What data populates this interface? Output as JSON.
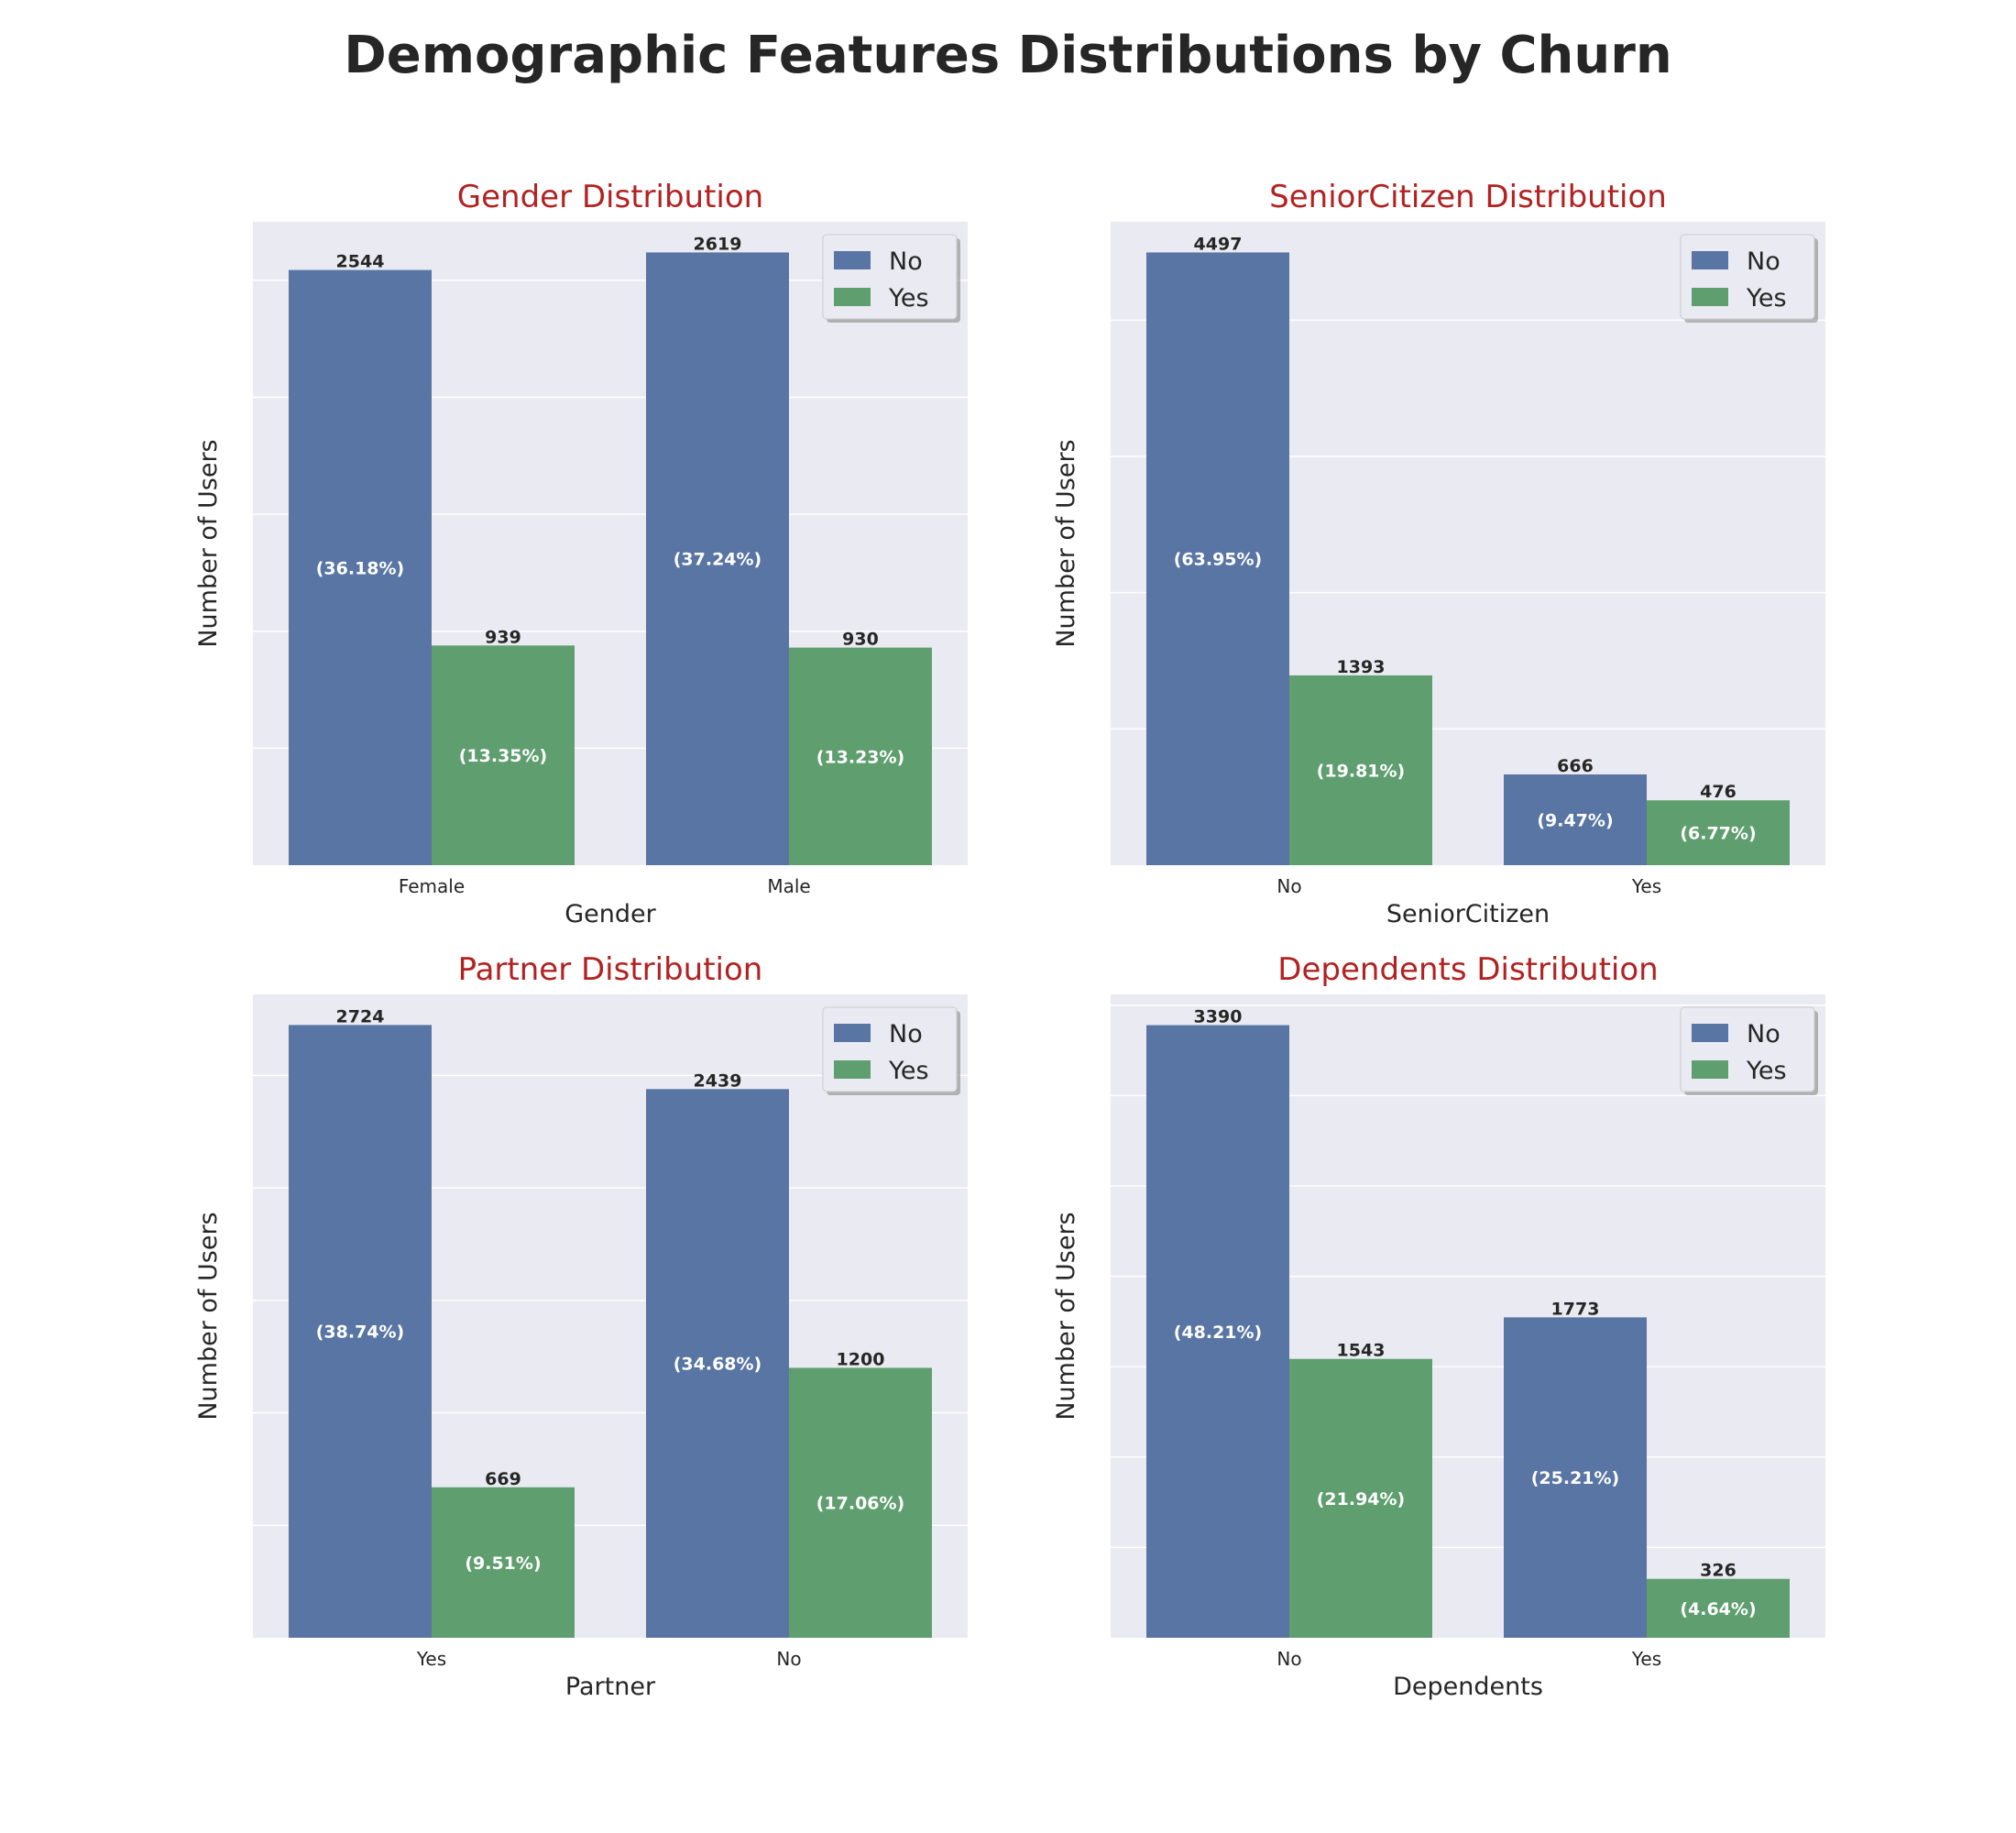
{
  "figure": {
    "title": "Demographic Features Distributions by Churn"
  },
  "legend": {
    "entries": [
      "No",
      "Yes"
    ],
    "placement": "top-right"
  },
  "colors": {
    "No": "#5875a4",
    "Yes": "#5f9e6e",
    "panel_bg": "#eaeaf2",
    "grid": "#ffffff",
    "title": "#b22222"
  },
  "chart_data": [
    {
      "type": "bar",
      "title": "Gender Distribution",
      "xlabel": "Gender",
      "ylabel": "Number of Users",
      "categories": [
        "Female",
        "Male"
      ],
      "series": [
        {
          "name": "No",
          "values": [
            2544,
            2619
          ],
          "labels": [
            "(36.18%)",
            "(37.24%)"
          ]
        },
        {
          "name": "Yes",
          "values": [
            939,
            930
          ],
          "labels": [
            "(13.35%)",
            "(13.23%)"
          ]
        }
      ],
      "ylim": [
        0,
        2750
      ],
      "grid_step": 500,
      "grid": true
    },
    {
      "type": "bar",
      "title": "SeniorCitizen Distribution",
      "xlabel": "SeniorCitizen",
      "ylabel": "Number of Users",
      "categories": [
        "No",
        "Yes"
      ],
      "series": [
        {
          "name": "No",
          "values": [
            4497,
            666
          ],
          "labels": [
            "(63.95%)",
            "(9.47%)"
          ]
        },
        {
          "name": "Yes",
          "values": [
            1393,
            476
          ],
          "labels": [
            "(19.81%)",
            "(6.77%)"
          ]
        }
      ],
      "ylim": [
        0,
        4722
      ],
      "grid_step": 1000,
      "grid": true
    },
    {
      "type": "bar",
      "title": "Partner Distribution",
      "xlabel": "Partner",
      "ylabel": "Number of Users",
      "categories": [
        "Yes",
        "No"
      ],
      "series": [
        {
          "name": "No",
          "values": [
            2724,
            2439
          ],
          "labels": [
            "(38.74%)",
            "(34.68%)"
          ]
        },
        {
          "name": "Yes",
          "values": [
            669,
            1200
          ],
          "labels": [
            "(9.51%)",
            "(17.06%)"
          ]
        }
      ],
      "ylim": [
        0,
        2860
      ],
      "grid_step": 500,
      "grid": true
    },
    {
      "type": "bar",
      "title": "Dependents Distribution",
      "xlabel": "Dependents",
      "ylabel": "Number of Users",
      "categories": [
        "No",
        "Yes"
      ],
      "series": [
        {
          "name": "No",
          "values": [
            3390,
            1773
          ],
          "labels": [
            "(48.21%)",
            "(25.21%)"
          ]
        },
        {
          "name": "Yes",
          "values": [
            1543,
            326
          ],
          "labels": [
            "(21.94%)",
            "(4.64%)"
          ]
        }
      ],
      "ylim": [
        0,
        3560
      ],
      "grid_step": 500,
      "grid": true
    }
  ]
}
